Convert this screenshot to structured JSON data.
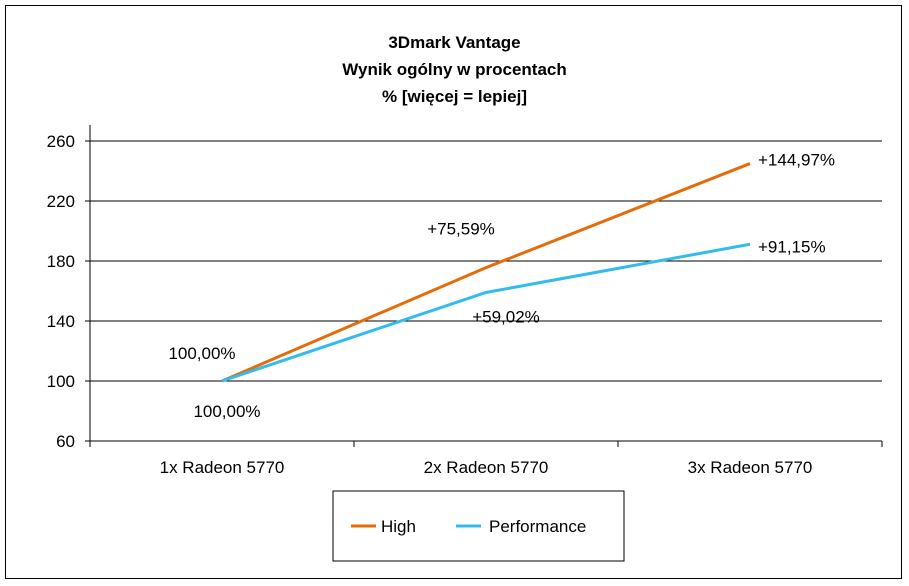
{
  "chart_data": {
    "type": "line",
    "title": [
      "3Dmark Vantage",
      "Wynik ogólny w procentach",
      "% [więcej = lepiej]"
    ],
    "categories": [
      "1x Radeon 5770",
      "2x Radeon 5770",
      "3x Radeon 5770"
    ],
    "ylim": [
      60,
      260
    ],
    "yticks": [
      "60",
      "100",
      "140",
      "180",
      "220",
      "260"
    ],
    "grid": true,
    "legend_position": "bottom",
    "series": [
      {
        "name": "High",
        "color": "#e46c0a",
        "values": [
          100.0,
          175.59,
          244.97
        ],
        "labels": [
          "100,00%",
          "+75,59%",
          "+144,97%"
        ]
      },
      {
        "name": "Performance",
        "color": "#33bbee",
        "values": [
          100.0,
          159.02,
          191.15
        ],
        "labels": [
          "100,00%",
          "+59,02%",
          "+91,15%"
        ]
      }
    ]
  }
}
